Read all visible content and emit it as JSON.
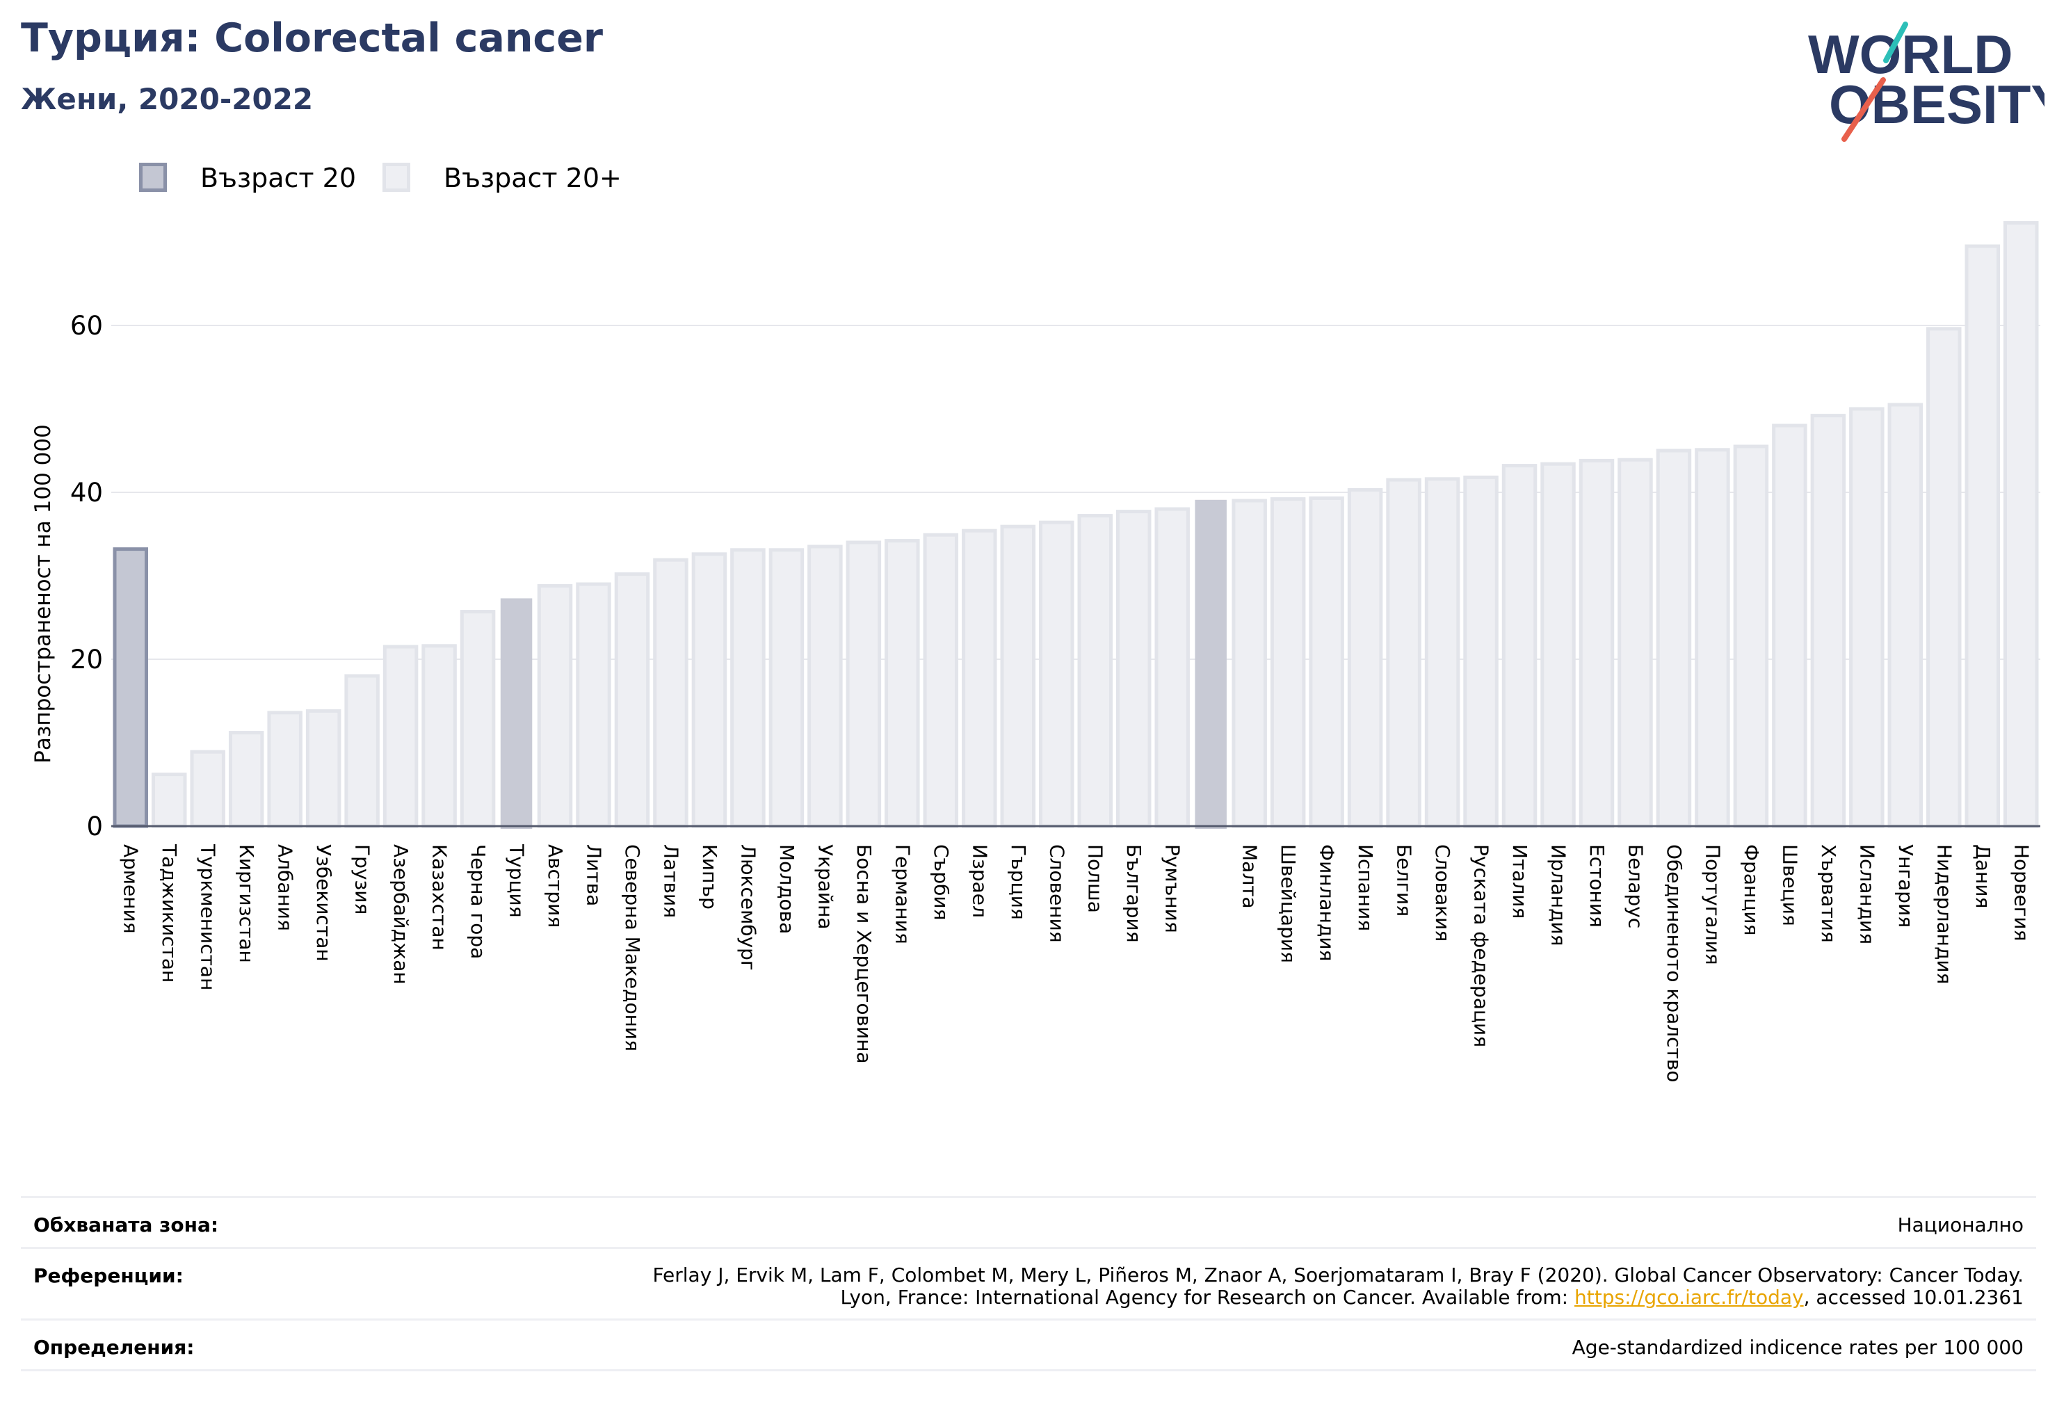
{
  "header": {
    "title": "Турция: Colorectal cancer",
    "subtitle": "Жени, 2020-2022"
  },
  "logo": {
    "line1": "WORLD",
    "line2": "OBESITY"
  },
  "legend": {
    "items": [
      {
        "label": "Възраст 20",
        "color": "#c4c7d3",
        "border": "#8a91a8"
      },
      {
        "label": "Възраст 20+",
        "color": "#eeeff3",
        "border": "#e2e4ea"
      }
    ]
  },
  "chart_data": {
    "type": "bar",
    "ylabel": "Разпространеност  на 100 000",
    "ylim": [
      0,
      74
    ],
    "yticks": [
      0,
      20,
      40,
      60
    ],
    "grid": true,
    "categories": [
      "Армения",
      "Таджикистан",
      "Туркменистан",
      "Киргизстан",
      "Албания",
      "Узбекистан",
      "Грузия",
      "Азербайджан",
      "Казахстан",
      "Черна гора",
      "Турция",
      "Австрия",
      "Литва",
      "Северна Македония",
      "Латвия",
      "Кипър",
      "Люксембург",
      "Молдова",
      "Украйна",
      "Босна и Херцеговина",
      "Германия",
      "Сърбия",
      "Израел",
      "Гърция",
      "Словения",
      "Полша",
      "България",
      "Румъния",
      "",
      "Малта",
      "Швейцария",
      "Финландия",
      "Испания",
      "Белгия",
      "Словакия",
      "Руската федерация",
      "Италия",
      "Ирландия",
      "Естония",
      "Беларус",
      "Обединеното кралство",
      "Португалия",
      "Франция",
      "Швеция",
      "Хърватия",
      "Исландия",
      "Унгария",
      "Нидерландия",
      "Дания",
      "Норвегия"
    ],
    "values": [
      33.2,
      6.2,
      8.9,
      11.2,
      13.6,
      13.8,
      18.0,
      21.5,
      21.6,
      25.7,
      27.3,
      28.8,
      29.0,
      30.2,
      31.9,
      32.6,
      33.1,
      33.1,
      33.5,
      34.0,
      34.2,
      34.9,
      35.4,
      35.9,
      36.4,
      37.2,
      37.7,
      38.0,
      39.1,
      39.0,
      39.2,
      39.3,
      40.3,
      41.5,
      41.6,
      41.8,
      43.2,
      43.4,
      43.8,
      43.9,
      45.0,
      45.1,
      45.5,
      48.0,
      49.2,
      50.0,
      50.5,
      59.6,
      69.5,
      72.3
    ],
    "series_group": [
      "age20",
      "age20plus",
      "age20plus",
      "age20plus",
      "age20plus",
      "age20plus",
      "age20plus",
      "age20plus",
      "age20plus",
      "age20plus",
      "highlight",
      "age20plus",
      "age20plus",
      "age20plus",
      "age20plus",
      "age20plus",
      "age20plus",
      "age20plus",
      "age20plus",
      "age20plus",
      "age20plus",
      "age20plus",
      "age20plus",
      "age20plus",
      "age20plus",
      "age20plus",
      "age20plus",
      "age20plus",
      "highlight",
      "age20plus",
      "age20plus",
      "age20plus",
      "age20plus",
      "age20plus",
      "age20plus",
      "age20plus",
      "age20plus",
      "age20plus",
      "age20plus",
      "age20plus",
      "age20plus",
      "age20plus",
      "age20plus",
      "age20plus",
      "age20plus",
      "age20plus",
      "age20plus",
      "age20plus",
      "age20plus",
      "age20plus"
    ],
    "colors": {
      "age20": "#c4c7d3",
      "age20_border": "#8a91a8",
      "age20plus": "#eeeff3",
      "age20plus_border": "#e2e4ea",
      "highlight": "#c8cad5"
    }
  },
  "footer": {
    "coverage_label": "Обхваната зона:",
    "coverage_value": "Национално",
    "references_label": "Референции:",
    "references_line1": "Ferlay J, Ervik M, Lam F, Colombet M, Mery L, Piñeros M, Znaor A, Soerjomataram I, Bray F (2020). Global Cancer Observatory: Cancer Today.",
    "references_line2_pre": "Lyon, France: International Agency for Research on Cancer. Available from: ",
    "references_link": "https://gco.iarc.fr/today",
    "references_line2_post": ", accessed 10.01.2361",
    "definitions_label": "Определения:",
    "definitions_value": "Age-standardized indicence rates per 100 000"
  }
}
